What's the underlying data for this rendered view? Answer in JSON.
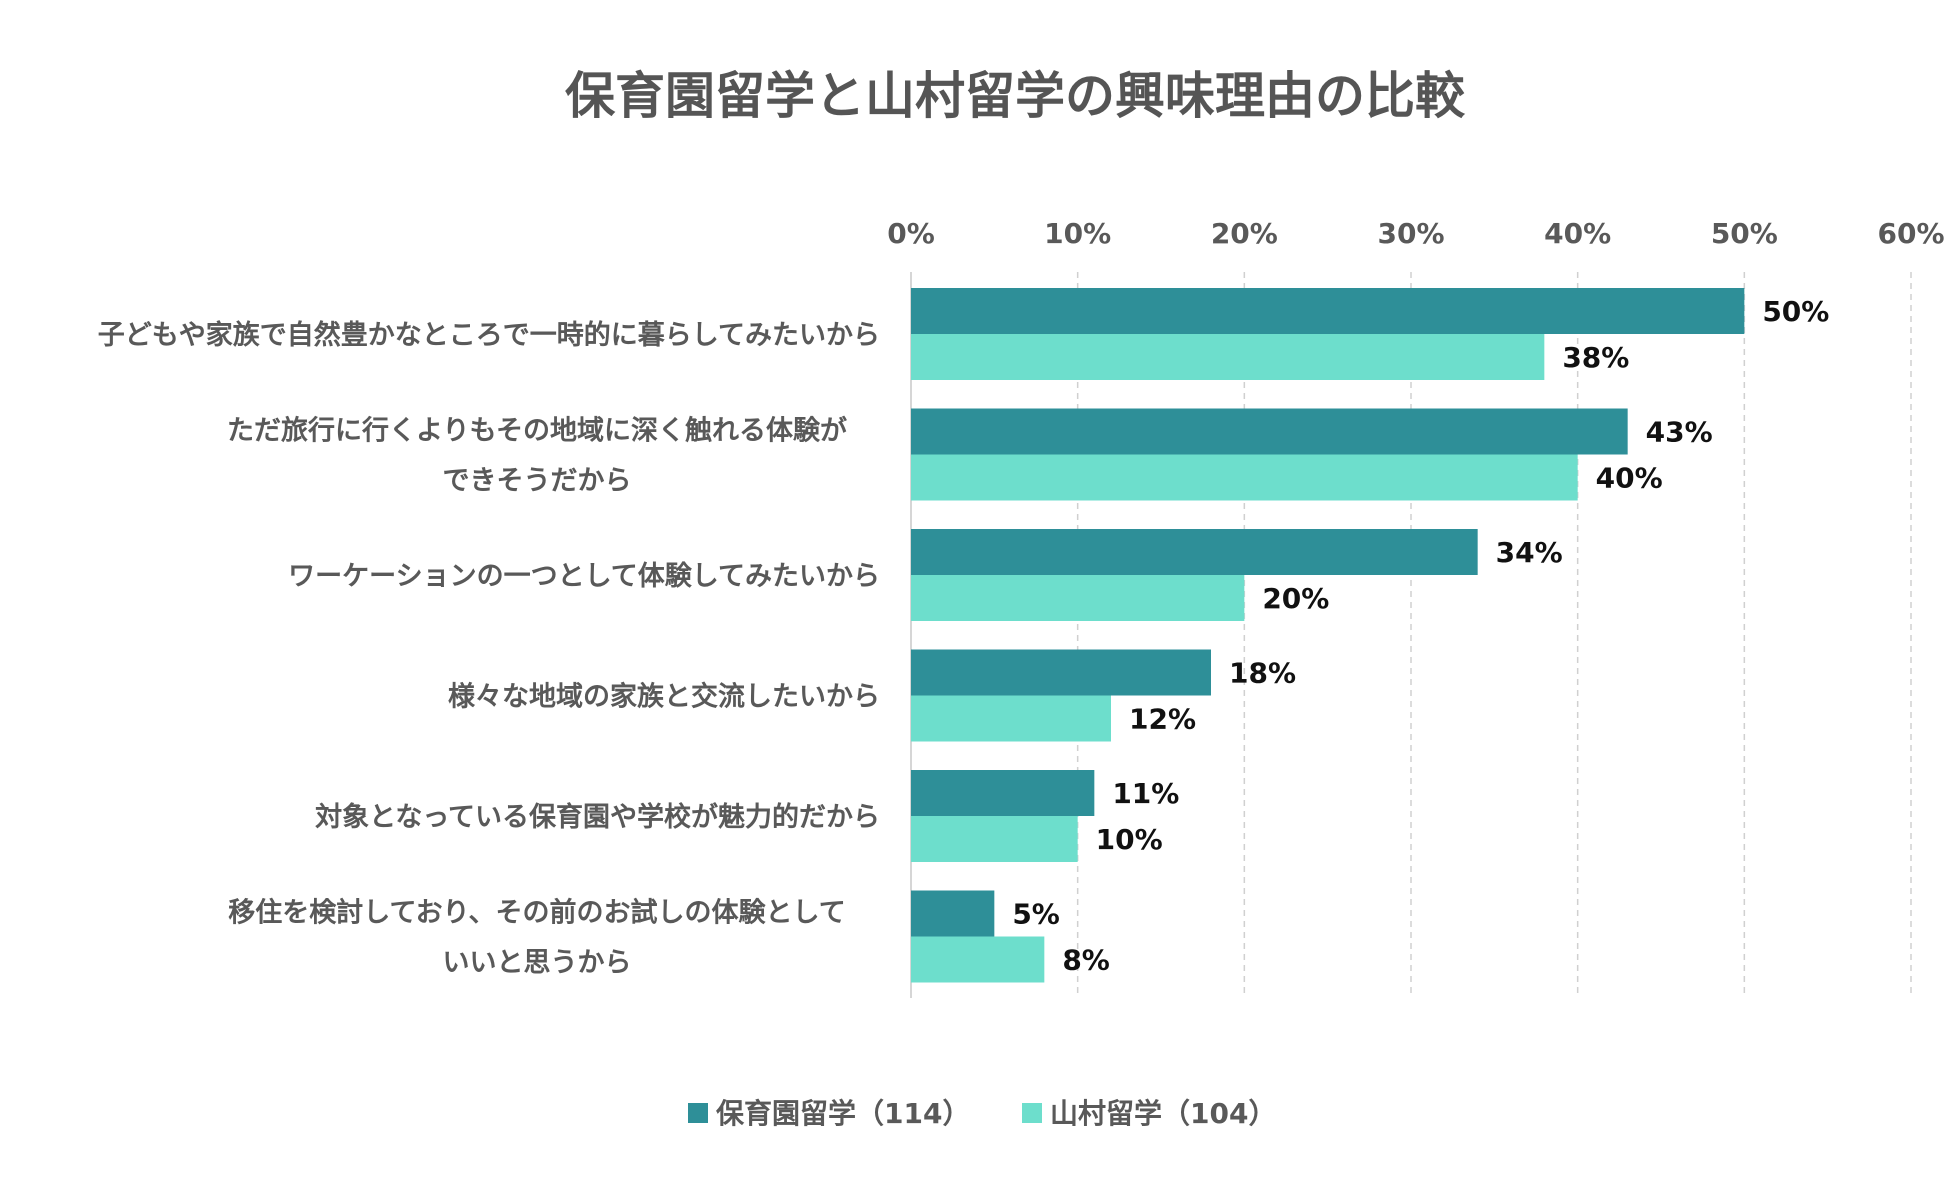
{
  "chart_data": {
    "type": "bar",
    "orientation": "horizontal",
    "title": "保育園留学と山村留学の興味理由の比較",
    "categories": [
      [
        "子どもや家族で自然豊かなところで一時的に暮らしてみたいから"
      ],
      [
        "ただ旅行に行くよりもその地域に深く触れる体験が",
        "できそうだから"
      ],
      [
        "ワーケーションの一つとして体験してみたいから"
      ],
      [
        "様々な地域の家族と交流したいから"
      ],
      [
        "対象となっている保育園や学校が魅力的だから"
      ],
      [
        "移住を検討しており、その前のお試しの体験として",
        "いいと思うから"
      ]
    ],
    "series": [
      {
        "name": "保育園留学（114）",
        "color": "#2e8f98",
        "values": [
          50,
          43,
          34,
          18,
          11,
          5
        ],
        "labels": [
          "50%",
          "43%",
          "34%",
          "18%",
          "11%",
          "5%"
        ]
      },
      {
        "name": "山村留学（104）",
        "color": "#6ddecc",
        "values": [
          38,
          40,
          20,
          12,
          10,
          8
        ],
        "labels": [
          "38%",
          "40%",
          "20%",
          "12%",
          "10%",
          "8%"
        ]
      }
    ],
    "xlim": [
      0,
      60
    ],
    "ticks": [
      0,
      10,
      20,
      30,
      40,
      50,
      60
    ],
    "tick_labels": [
      "0%",
      "10%",
      "20%",
      "30%",
      "40%",
      "50%",
      "60%"
    ],
    "xlabel": "",
    "ylabel": "",
    "grid": true,
    "legend_position": "bottom",
    "axis_position": "top"
  }
}
